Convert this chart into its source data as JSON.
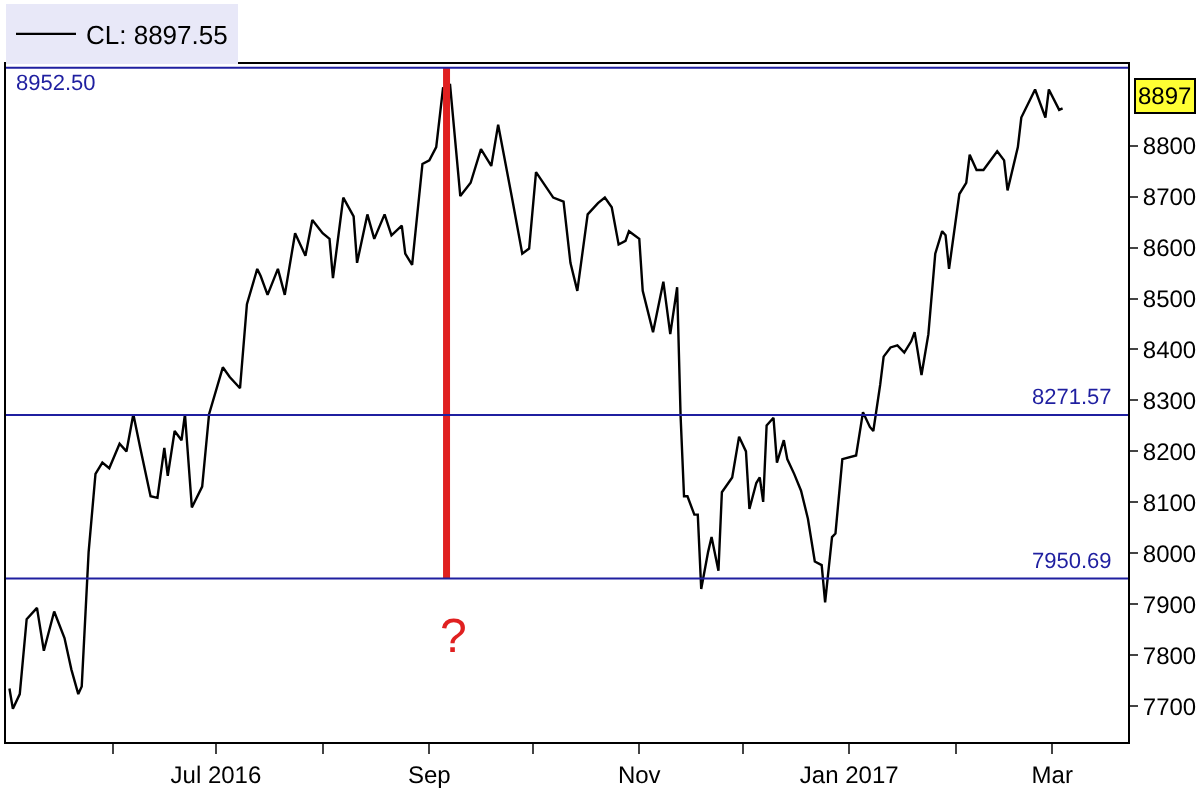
{
  "chart_data": {
    "type": "line",
    "xlim": [
      "2016-05-01",
      "2017-03-23"
    ],
    "xticks": [
      {
        "value": "2016-06-01",
        "label": null
      },
      {
        "value": "2016-07-01",
        "label": "Jul 2016"
      },
      {
        "value": "2016-08-01",
        "label": null
      },
      {
        "value": "2016-09-01",
        "label": "Sep"
      },
      {
        "value": "2016-10-01",
        "label": null
      },
      {
        "value": "2016-11-01",
        "label": "Nov"
      },
      {
        "value": "2016-12-01",
        "label": null
      },
      {
        "value": "2017-01-01",
        "label": "Jan 2017"
      },
      {
        "value": "2017-02-01",
        "label": null
      },
      {
        "value": "2017-03-01",
        "label": "Mar"
      }
    ],
    "ylim": [
      7630,
      8960
    ],
    "yticks": [
      7700,
      7800,
      7900,
      8000,
      8100,
      8200,
      8300,
      8400,
      8500,
      8600,
      8700,
      8800
    ],
    "legend": "top left",
    "series": [
      {
        "name": "CL: 8897.55",
        "color": "#000000",
        "x": [
          "2016-05-02",
          "2016-05-03",
          "2016-05-05",
          "2016-05-07",
          "2016-05-10",
          "2016-05-12",
          "2016-05-15",
          "2016-05-18",
          "2016-05-20",
          "2016-05-22",
          "2016-05-23",
          "2016-05-25",
          "2016-05-27",
          "2016-05-29",
          "2016-05-31",
          "2016-06-03",
          "2016-06-05",
          "2016-06-07",
          "2016-06-09",
          "2016-06-12",
          "2016-06-14",
          "2016-06-16",
          "2016-06-17",
          "2016-06-19",
          "2016-06-21",
          "2016-06-22",
          "2016-06-24",
          "2016-06-27",
          "2016-06-29",
          "2016-07-03",
          "2016-07-05",
          "2016-07-08",
          "2016-07-10",
          "2016-07-13",
          "2016-07-14",
          "2016-07-16",
          "2016-07-19",
          "2016-07-21",
          "2016-07-24",
          "2016-07-27",
          "2016-07-29",
          "2016-08-01",
          "2016-08-03",
          "2016-08-04",
          "2016-08-07",
          "2016-08-10",
          "2016-08-11",
          "2016-08-14",
          "2016-08-16",
          "2016-08-19",
          "2016-08-21",
          "2016-08-24",
          "2016-08-25",
          "2016-08-27",
          "2016-08-30",
          "2016-09-01",
          "2016-09-03",
          "2016-09-05",
          "2016-09-06",
          "2016-09-07",
          "2016-09-10",
          "2016-09-13",
          "2016-09-16",
          "2016-09-19",
          "2016-09-21",
          "2016-09-25",
          "2016-09-28",
          "2016-09-30",
          "2016-10-02",
          "2016-10-07",
          "2016-10-10",
          "2016-10-12",
          "2016-10-14",
          "2016-10-17",
          "2016-10-20",
          "2016-10-22",
          "2016-10-24",
          "2016-10-26",
          "2016-10-28",
          "2016-10-29",
          "2016-11-01",
          "2016-11-02",
          "2016-11-05",
          "2016-11-08",
          "2016-11-10",
          "2016-11-12",
          "2016-11-13",
          "2016-11-14",
          "2016-11-15",
          "2016-11-17",
          "2016-11-18",
          "2016-11-19",
          "2016-11-21",
          "2016-11-22",
          "2016-11-24",
          "2016-11-25",
          "2016-11-28",
          "2016-11-30",
          "2016-12-02",
          "2016-12-03",
          "2016-12-05",
          "2016-12-06",
          "2016-12-07",
          "2016-12-08",
          "2016-12-10",
          "2016-12-11",
          "2016-12-13",
          "2016-12-14",
          "2016-12-16",
          "2016-12-18",
          "2016-12-20",
          "2016-12-22",
          "2016-12-24",
          "2016-12-25",
          "2016-12-27",
          "2016-12-28",
          "2016-12-30",
          "2017-01-03",
          "2017-01-05",
          "2017-01-07",
          "2017-01-08",
          "2017-01-10",
          "2017-01-11",
          "2017-01-13",
          "2017-01-15",
          "2017-01-17",
          "2017-01-19",
          "2017-01-20",
          "2017-01-22",
          "2017-01-24",
          "2017-01-26",
          "2017-01-28",
          "2017-01-29",
          "2017-01-30",
          "2017-02-02",
          "2017-02-04",
          "2017-02-05",
          "2017-02-07",
          "2017-02-09",
          "2017-02-13",
          "2017-02-15",
          "2017-02-16",
          "2017-02-19",
          "2017-02-20",
          "2017-02-24",
          "2017-02-27",
          "2017-02-28",
          "2017-03-03",
          "2017-03-04"
        ],
        "values": [
          7735,
          7695,
          7724,
          7871,
          7893,
          7809,
          7886,
          7834,
          7772,
          7724,
          7739,
          8002,
          8156,
          8178,
          8167,
          8215,
          8200,
          8273,
          8207,
          8112,
          8109,
          8207,
          8152,
          8240,
          8222,
          8273,
          8090,
          8131,
          8273,
          8365,
          8346,
          8324,
          8489,
          8558,
          8544,
          8507,
          8558,
          8507,
          8628,
          8584,
          8654,
          8628,
          8617,
          8540,
          8698,
          8661,
          8570,
          8665,
          8617,
          8665,
          8624,
          8643,
          8588,
          8566,
          8764,
          8771,
          8797,
          8914,
          8906,
          8921,
          8701,
          8727,
          8793,
          8760,
          8841,
          8698,
          8588,
          8598,
          8748,
          8698,
          8690,
          8570,
          8515,
          8665,
          8687,
          8698,
          8679,
          8606,
          8613,
          8632,
          8617,
          8515,
          8434,
          8533,
          8430,
          8522,
          8270,
          8112,
          8112,
          8076,
          8076,
          7930,
          8003,
          8032,
          7966,
          8120,
          8149,
          8229,
          8200,
          8087,
          8138,
          8149,
          8101,
          8251,
          8266,
          8178,
          8222,
          8185,
          8156,
          8123,
          8068,
          7984,
          7977,
          7904,
          8032,
          8039,
          8185,
          8192,
          8277,
          8248,
          8240,
          8331,
          8386,
          8404,
          8408,
          8394,
          8416,
          8434,
          8350,
          8430,
          8588,
          8632,
          8624,
          8558,
          8705,
          8727,
          8782,
          8752,
          8752,
          8789,
          8771,
          8712,
          8797,
          8855,
          8910,
          8855,
          8910,
          8870,
          8873
        ]
      },
      {
        "color": "#e02020",
        "x": [
          "2016-09-06",
          "2016-09-06"
        ],
        "values": [
          7950.69,
          8952.5
        ]
      }
    ],
    "ref_lines": [
      {
        "axis": "y",
        "value": 8952.5,
        "label": "8952.50",
        "color": "#1f1fa0"
      },
      {
        "axis": "y",
        "value": 8271.57,
        "label": "8271.57",
        "color": "#1f1fa0"
      },
      {
        "axis": "y",
        "value": 7950.69,
        "label": "7950.69",
        "color": "#1f1fa0"
      }
    ],
    "annotations": [
      "?",
      "8897"
    ]
  }
}
